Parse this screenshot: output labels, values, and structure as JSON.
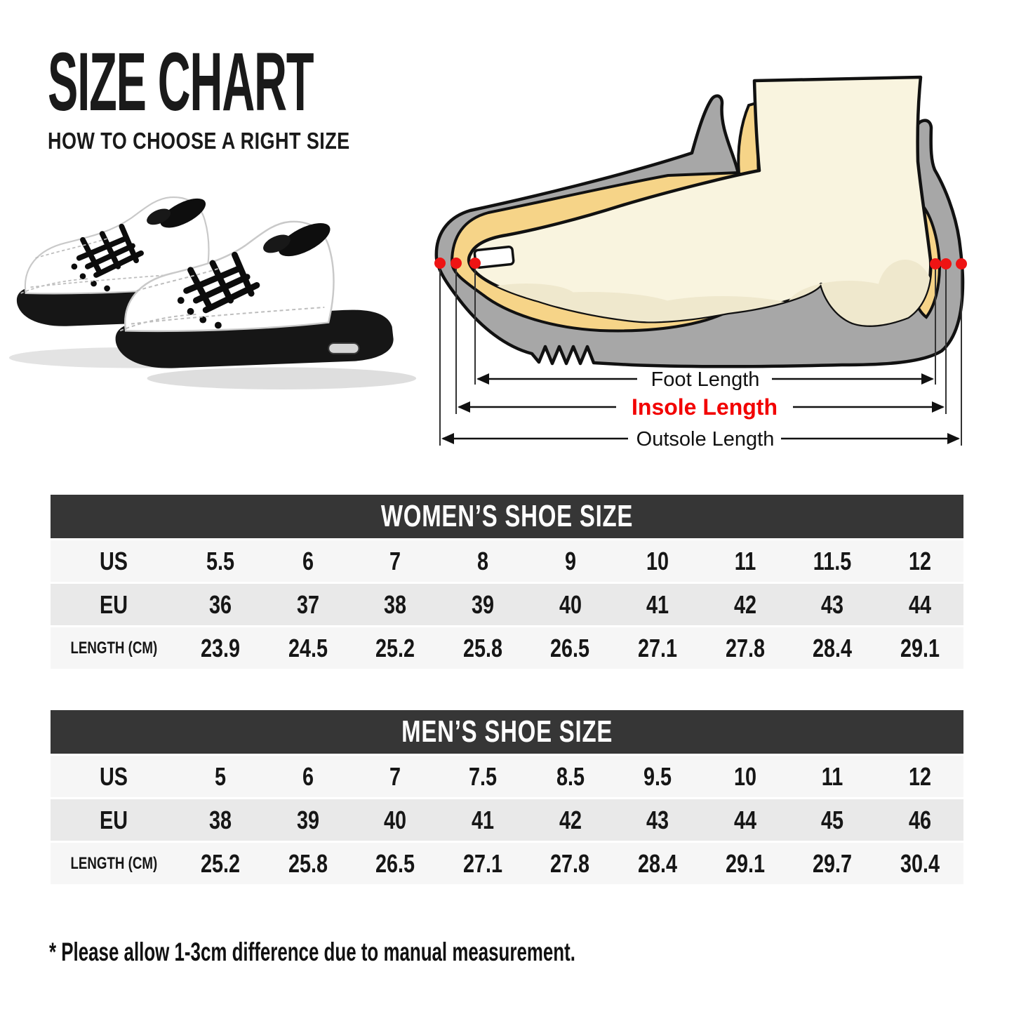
{
  "page": {
    "title": "SIZE CHART",
    "subtitle": "HOW TO CHOOSE A RIGHT SIZE",
    "footnote": "* Please allow 1-3cm difference due to manual measurement."
  },
  "hero_image": {
    "description": "pair of white high-top sneakers with black laces and black soles",
    "colors": {
      "upper": "#ffffff",
      "laces_sole": "#141414",
      "shadow": "#e0e0e0"
    }
  },
  "diagram": {
    "labels": {
      "foot_length": "Foot Length",
      "insole_length": "Insole Length",
      "outsole_length": "Outsole Length"
    },
    "colors": {
      "shoe_gray": "#a7a7a7",
      "foot_cream": "#f9f4df",
      "foot_shading": "#efe8cd",
      "lining_yellow": "#f6d488",
      "outline_black": "#111111",
      "marker_red": "#ee1414",
      "insole_label_red": "#f20000"
    }
  },
  "tables": [
    {
      "id": "women",
      "title": "WOMEN’S SHOE SIZE",
      "rows": [
        {
          "label": "US",
          "values": [
            "5.5",
            "6",
            "7",
            "8",
            "9",
            "10",
            "11",
            "11.5",
            "12"
          ]
        },
        {
          "label": "EU",
          "values": [
            "36",
            "37",
            "38",
            "39",
            "40",
            "41",
            "42",
            "43",
            "44"
          ]
        },
        {
          "label": "LENGTH (CM)",
          "values": [
            "23.9",
            "24.5",
            "25.2",
            "25.8",
            "26.5",
            "27.1",
            "27.8",
            "28.4",
            "29.1"
          ]
        }
      ]
    },
    {
      "id": "men",
      "title": "MEN’S SHOE SIZE",
      "rows": [
        {
          "label": "US",
          "values": [
            "5",
            "6",
            "7",
            "7.5",
            "8.5",
            "9.5",
            "10",
            "11",
            "12"
          ]
        },
        {
          "label": "EU",
          "values": [
            "38",
            "39",
            "40",
            "41",
            "42",
            "43",
            "44",
            "45",
            "46"
          ]
        },
        {
          "label": "LENGTH (CM)",
          "values": [
            "25.2",
            "25.8",
            "26.5",
            "27.1",
            "27.8",
            "28.4",
            "29.1",
            "29.7",
            "30.4"
          ]
        }
      ]
    }
  ]
}
